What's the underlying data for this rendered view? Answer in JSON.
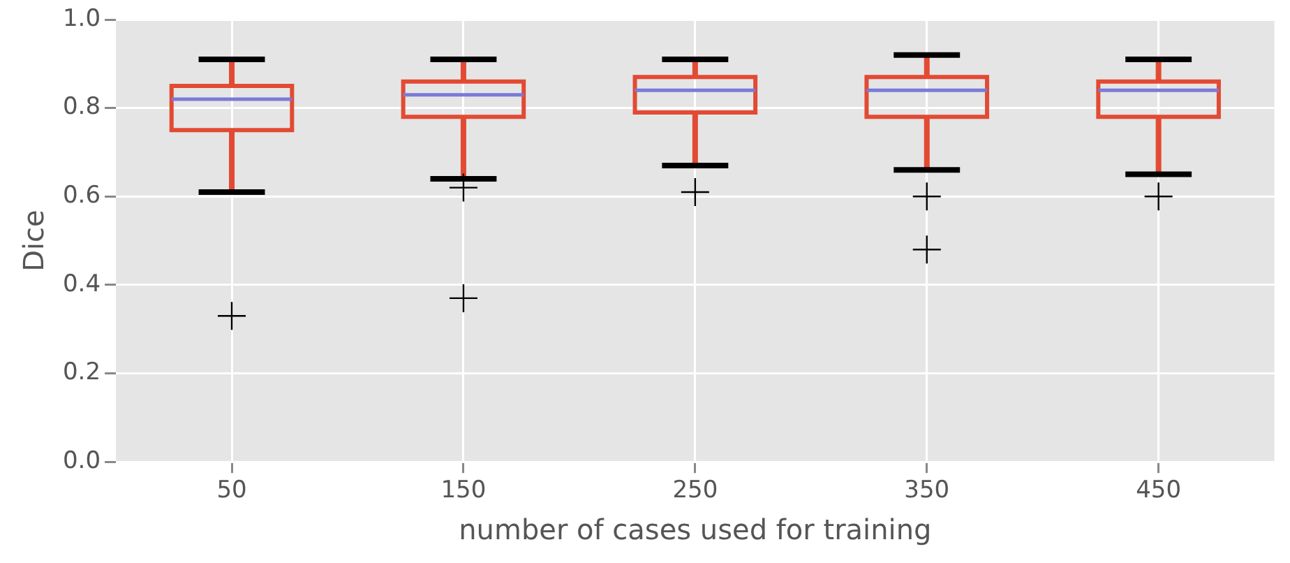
{
  "chart_data": {
    "type": "box",
    "xlabel": "number of cases used for training",
    "ylabel": "Dice",
    "categories": [
      "50",
      "150",
      "250",
      "350",
      "450"
    ],
    "color": "#e24a33",
    "marker": "cross",
    "grid": true,
    "ylim": [
      0,
      1
    ],
    "yticks": [
      {
        "value": 0,
        "label": "0.0"
      },
      {
        "value": 0.2,
        "label": "0.2"
      },
      {
        "value": 0.4,
        "label": "0.4"
      },
      {
        "value": 0.6,
        "label": "0.6"
      },
      {
        "value": 0.8,
        "label": "0.8"
      },
      {
        "value": 1,
        "label": "1.0"
      }
    ],
    "boxes": [
      {
        "low": 0.61,
        "q1": 0.75,
        "median": 0.82,
        "q3": 0.85,
        "high": 0.91,
        "outliers": [
          0.33
        ]
      },
      {
        "low": 0.64,
        "q1": 0.78,
        "median": 0.83,
        "q3": 0.86,
        "high": 0.91,
        "outliers": [
          0.62,
          0.37
        ]
      },
      {
        "low": 0.67,
        "q1": 0.79,
        "median": 0.84,
        "q3": 0.87,
        "high": 0.91,
        "outliers": [
          0.61
        ]
      },
      {
        "low": 0.66,
        "q1": 0.78,
        "median": 0.84,
        "q3": 0.87,
        "high": 0.92,
        "outliers": [
          0.6,
          0.48
        ]
      },
      {
        "low": 0.65,
        "q1": 0.78,
        "median": 0.84,
        "q3": 0.86,
        "high": 0.91,
        "outliers": [
          0.6
        ]
      }
    ]
  }
}
